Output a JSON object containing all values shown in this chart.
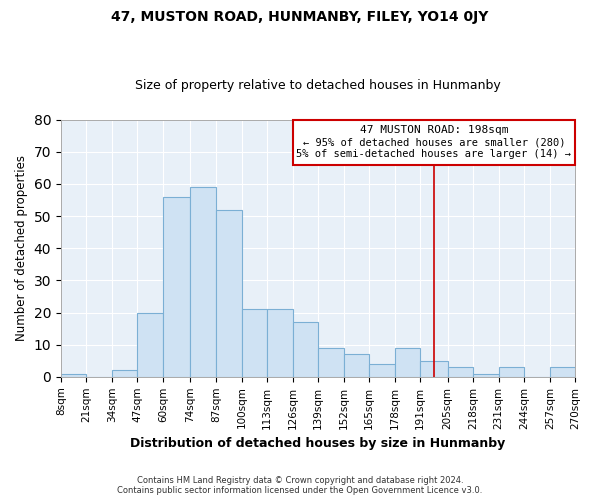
{
  "title": "47, MUSTON ROAD, HUNMANBY, FILEY, YO14 0JY",
  "subtitle": "Size of property relative to detached houses in Hunmanby",
  "xlabel": "Distribution of detached houses by size in Hunmanby",
  "ylabel": "Number of detached properties",
  "bar_color": "#cfe2f3",
  "bar_edge_color": "#7bafd4",
  "bin_labels": [
    "8sqm",
    "21sqm",
    "34sqm",
    "47sqm",
    "60sqm",
    "74sqm",
    "87sqm",
    "100sqm",
    "113sqm",
    "126sqm",
    "139sqm",
    "152sqm",
    "165sqm",
    "178sqm",
    "191sqm",
    "205sqm",
    "218sqm",
    "231sqm",
    "244sqm",
    "257sqm",
    "270sqm"
  ],
  "bar_heights": [
    1,
    0,
    2,
    20,
    56,
    59,
    52,
    21,
    21,
    17,
    9,
    7,
    4,
    9,
    5,
    3,
    1,
    3,
    0,
    3
  ],
  "ylim": [
    0,
    80
  ],
  "yticks": [
    0,
    10,
    20,
    30,
    40,
    50,
    60,
    70,
    80
  ],
  "property_line_x": 198,
  "property_line_label": "47 MUSTON ROAD: 198sqm",
  "annotation_line1": "← 95% of detached houses are smaller (280)",
  "annotation_line2": "5% of semi-detached houses are larger (14) →",
  "annotation_box_color": "#cc0000",
  "vertical_line_color": "#cc0000",
  "footer_line1": "Contains HM Land Registry data © Crown copyright and database right 2024.",
  "footer_line2": "Contains public sector information licensed under the Open Government Licence v3.0.",
  "background_color": "#ffffff",
  "plot_bg_color": "#e8f0f8",
  "grid_color": "#ffffff"
}
